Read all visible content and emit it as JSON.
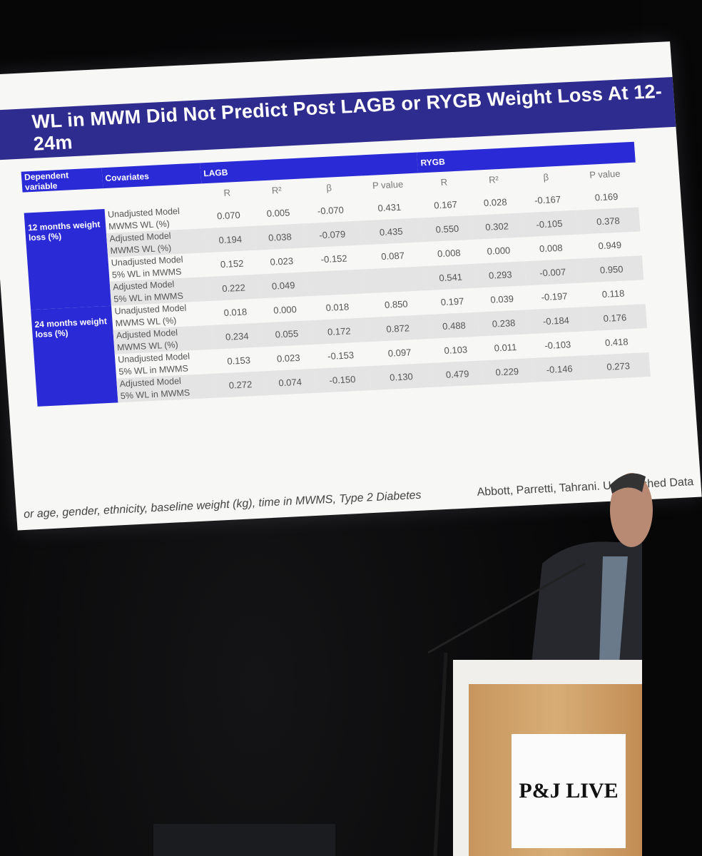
{
  "slide": {
    "title": "WL in MWM Did Not Predict Post LAGB or RYGB Weight Loss At 12-24m",
    "table": {
      "header": {
        "dependent": "Dependent variable",
        "covariates": "Covariates",
        "lagb": "LAGB",
        "rygb": "RYGB",
        "columns": [
          "R",
          "R²",
          "β",
          "P value",
          "R",
          "R²",
          "β",
          "P value"
        ]
      },
      "groups": [
        {
          "label": "12 months weight loss (%)",
          "rows": [
            {
              "model": "Unadjusted Model",
              "measure": "MWMS WL (%)",
              "values": [
                "0.070",
                "0.005",
                "-0.070",
                "0.431",
                "0.167",
                "0.028",
                "-0.167",
                "0.169"
              ]
            },
            {
              "model": "Adjusted Model",
              "measure": "MWMS WL (%)",
              "values": [
                "0.194",
                "0.038",
                "-0.079",
                "0.435",
                "0.550",
                "0.302",
                "-0.105",
                "0.378"
              ]
            },
            {
              "model": "Unadjusted Model",
              "measure": "5% WL in MWMS",
              "values": [
                "0.152",
                "0.023",
                "-0.152",
                "0.087",
                "0.008",
                "0.000",
                "0.008",
                "0.949"
              ]
            },
            {
              "model": "Adjusted Model",
              "measure": "5% WL in MWMS",
              "values": [
                "0.222",
                "0.049",
                null,
                null,
                "0.541",
                "0.293",
                "-0.007",
                "0.950"
              ]
            }
          ]
        },
        {
          "label": "24 months weight loss (%)",
          "rows": [
            {
              "model": "Unadjusted Model",
              "measure": "MWMS WL (%)",
              "values": [
                "0.018",
                "0.000",
                "0.018",
                "0.850",
                "0.197",
                "0.039",
                "-0.197",
                "0.118"
              ]
            },
            {
              "model": "Adjusted Model",
              "measure": "MWMS WL (%)",
              "values": [
                "0.234",
                "0.055",
                "0.172",
                "0.872",
                "0.488",
                "0.238",
                "-0.184",
                "0.176"
              ]
            },
            {
              "model": "Unadjusted Model",
              "measure": "5% WL in MWMS",
              "values": [
                "0.153",
                "0.023",
                "-0.153",
                "0.097",
                "0.103",
                "0.011",
                "-0.103",
                "0.418"
              ]
            },
            {
              "model": "Adjusted Model",
              "measure": "5% WL in MWMS",
              "values": [
                "0.272",
                "0.074",
                "-0.150",
                "0.130",
                "0.479",
                "0.229",
                "-0.146",
                "0.273"
              ]
            }
          ]
        }
      ]
    },
    "footnote": "or age, gender, ethnicity, baseline weight (kg), time in MWMS, Type 2 Diabetes",
    "citation": "Abbott, Parretti, Tahrani. Unpublished Data"
  },
  "podium": {
    "sign": "P&J LIVE"
  }
}
